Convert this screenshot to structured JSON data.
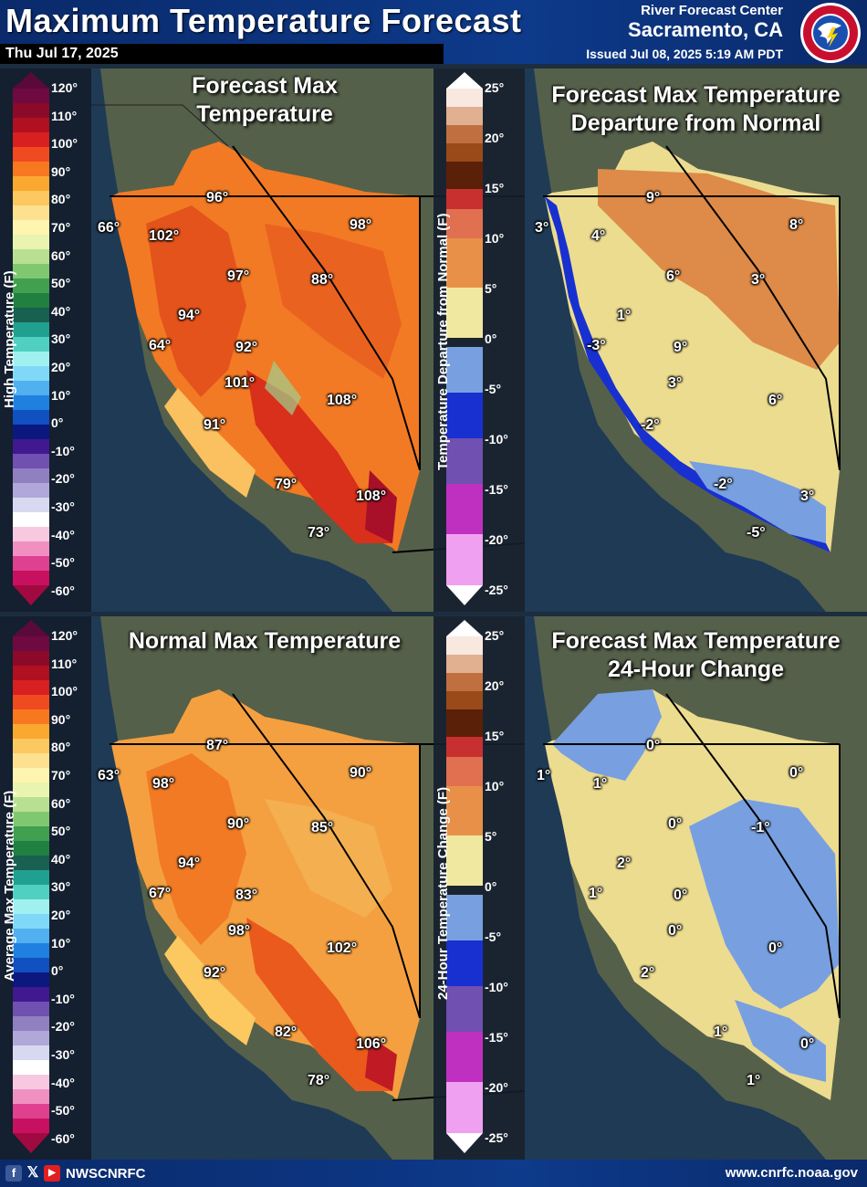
{
  "header": {
    "title": "Maximum Temperature Forecast",
    "date": "Thu Jul 17, 2025",
    "center": "River Forecast Center",
    "city": "Sacramento, CA",
    "issued": "Issued Jul 08, 2025 5:19 AM PDT",
    "logo_icon": "nws-logo-icon"
  },
  "legend_left": {
    "ticks": [
      "120°",
      "110°",
      "100°",
      "90°",
      "80°",
      "70°",
      "60°",
      "50°",
      "40°",
      "30°",
      "20°",
      "10°",
      "0°",
      "-10°",
      "-20°",
      "-30°",
      "-40°",
      "-50°",
      "-60°"
    ]
  },
  "legend_right": {
    "ticks": [
      "25°",
      "20°",
      "15°",
      "10°",
      "5°",
      "0°",
      "-5°",
      "-10°",
      "-15°",
      "-20°",
      "-25°"
    ]
  },
  "panels": {
    "forecast": {
      "title_line1": "Forecast Max",
      "title_line2": "Temperature",
      "axis_label": "High Temperature (F)",
      "labels": [
        "96°",
        "98°",
        "66°",
        "102°",
        "97°",
        "88°",
        "94°",
        "64°",
        "92°",
        "101°",
        "108°",
        "91°",
        "79°",
        "108°",
        "73°"
      ]
    },
    "departure": {
      "title_line1": "Forecast Max Temperature",
      "title_line2": "Departure from Normal",
      "axis_label": "Temperature Departure from Normal (F)",
      "labels": [
        "9°",
        "8°",
        "3°",
        "4°",
        "6°",
        "3°",
        "1°",
        "-3°",
        "9°",
        "3°",
        "6°",
        "-2°",
        "-2°",
        "3°",
        "-5°"
      ]
    },
    "normal": {
      "title_line1": "Normal Max Temperature",
      "axis_label": "Average Max Temperature (F)",
      "labels": [
        "87°",
        "90°",
        "63°",
        "98°",
        "90°",
        "85°",
        "94°",
        "67°",
        "83°",
        "98°",
        "102°",
        "92°",
        "82°",
        "106°",
        "78°"
      ]
    },
    "change": {
      "title_line1": "Forecast Max Temperature",
      "title_line2": "24-Hour Change",
      "axis_label": "24-Hour Temperature Change (F)",
      "labels": [
        "0°",
        "0°",
        "1°",
        "1°",
        "0°",
        "-1°",
        "2°",
        "1°",
        "0°",
        "0°",
        "0°",
        "2°",
        "1°",
        "0°",
        "1°"
      ]
    }
  },
  "footer": {
    "facebook_icon": "facebook-icon",
    "x_icon": "x-icon",
    "youtube_icon": "youtube-icon",
    "handle": "NWSCNRFC",
    "website": "www.cnrfc.noaa.gov"
  }
}
